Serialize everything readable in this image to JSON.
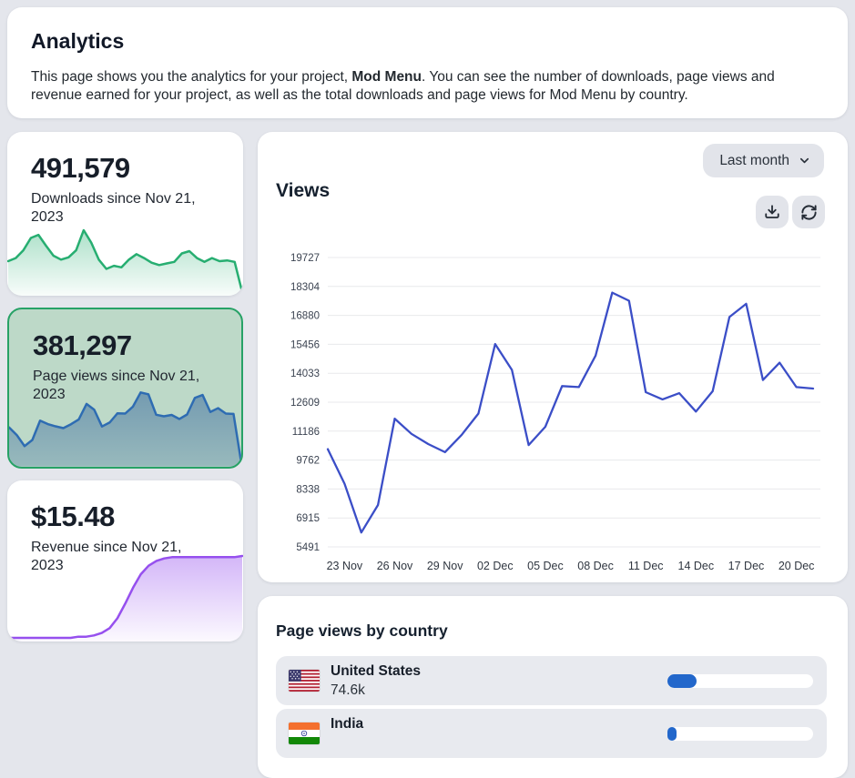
{
  "header": {
    "title": "Analytics",
    "description_prefix": "This page shows you the analytics for your project, ",
    "project_name": "Mod Menu",
    "description_suffix": ". You can see the number of downloads, page views and revenue earned for your project, as well as the total downloads and page views for Mod Menu by country."
  },
  "stat_cards": [
    {
      "id": "downloads",
      "value": "491,579",
      "label": "Downloads since Nov 21, 2023",
      "selected": false,
      "stroke": "#27ae71",
      "fill_top": "rgba(39,174,113,0.38)",
      "fill_bottom": "rgba(39,174,113,0.03)",
      "sparkline": [
        48,
        52,
        62,
        78,
        82,
        68,
        55,
        50,
        53,
        62,
        88,
        72,
        50,
        38,
        42,
        40,
        50,
        57,
        52,
        46,
        43,
        45,
        47,
        58,
        61,
        52,
        47,
        52,
        48,
        49,
        47,
        8
      ]
    },
    {
      "id": "page-views",
      "value": "381,297",
      "label": "Page views since Nov 21, 2023",
      "selected": true,
      "stroke": "#2e6cb2",
      "fill_top": "rgba(56,104,158,0.55)",
      "fill_bottom": "rgba(56,104,158,0.28)",
      "sparkline": [
        10300,
        8600,
        6200,
        7550,
        11800,
        11050,
        10550,
        10150,
        11000,
        12050,
        15470,
        14200,
        10500,
        11400,
        13400,
        13350,
        14900,
        18000,
        17600,
        13100,
        12750,
        13050,
        12150,
        13150,
        16800,
        17450,
        13700,
        14550,
        13350,
        13280,
        2500
      ]
    },
    {
      "id": "revenue",
      "value": "$15.48",
      "label": "Revenue since Nov 21, 2023",
      "selected": false,
      "stroke": "#9650ee",
      "fill_top": "rgba(150,80,238,0.42)",
      "fill_bottom": "rgba(150,80,238,0.03)",
      "sparkline": [
        4,
        4,
        4,
        4,
        4,
        4,
        4,
        4,
        4,
        5,
        5,
        6,
        8,
        12,
        20,
        32,
        45,
        56,
        63,
        67,
        69,
        70,
        70,
        70,
        70,
        70,
        70,
        70,
        70,
        70,
        71
      ]
    }
  ],
  "views_panel": {
    "period_selector_label": "Last month",
    "title": "Views",
    "export_icon": "download-icon",
    "refresh_icon": "refresh-icon"
  },
  "chart_data": {
    "type": "line",
    "title": "Views",
    "line_color": "#3b4ec7",
    "grid": true,
    "ylim": [
      5491,
      19727
    ],
    "y_ticks": [
      19727,
      18304,
      16880,
      15456,
      14033,
      12609,
      11186,
      9762,
      8338,
      6915,
      5491
    ],
    "x": [
      "22 Nov",
      "23 Nov",
      "24 Nov",
      "25 Nov",
      "26 Nov",
      "27 Nov",
      "28 Nov",
      "29 Nov",
      "30 Nov",
      "01 Dec",
      "02 Dec",
      "03 Dec",
      "04 Dec",
      "05 Dec",
      "06 Dec",
      "07 Dec",
      "08 Dec",
      "09 Dec",
      "10 Dec",
      "11 Dec",
      "12 Dec",
      "13 Dec",
      "14 Dec",
      "15 Dec",
      "16 Dec",
      "17 Dec",
      "18 Dec",
      "19 Dec",
      "20 Dec",
      "21 Dec"
    ],
    "x_tick_labels": [
      "23 Nov",
      "26 Nov",
      "29 Nov",
      "02 Dec",
      "05 Dec",
      "08 Dec",
      "11 Dec",
      "14 Dec",
      "17 Dec",
      "20 Dec"
    ],
    "x_tick_indices": [
      1,
      4,
      7,
      10,
      13,
      16,
      19,
      22,
      25,
      28
    ],
    "values": [
      10300,
      8600,
      6200,
      7550,
      11800,
      11050,
      10550,
      10150,
      11000,
      12050,
      15470,
      14200,
      10500,
      11400,
      13400,
      13350,
      14900,
      18000,
      17600,
      13100,
      12750,
      13050,
      12150,
      13150,
      16800,
      17450,
      13700,
      14550,
      13350,
      13280
    ]
  },
  "country_panel": {
    "title": "Page views by country",
    "bar_color": "#2267cb",
    "rows": [
      {
        "country": "United States",
        "value": "74.6k",
        "flag": "us",
        "progress": 0.2
      },
      {
        "country": "India",
        "value": "",
        "flag": "in",
        "progress": 0.06
      }
    ]
  },
  "colors": {
    "page_background": "#e4e6ec",
    "card_background": "#ffffff",
    "selected_card_background": "#bdd9c8",
    "selected_card_border": "#27a266",
    "button_background": "#e2e4ea",
    "grid_line": "#e8e9ec"
  }
}
